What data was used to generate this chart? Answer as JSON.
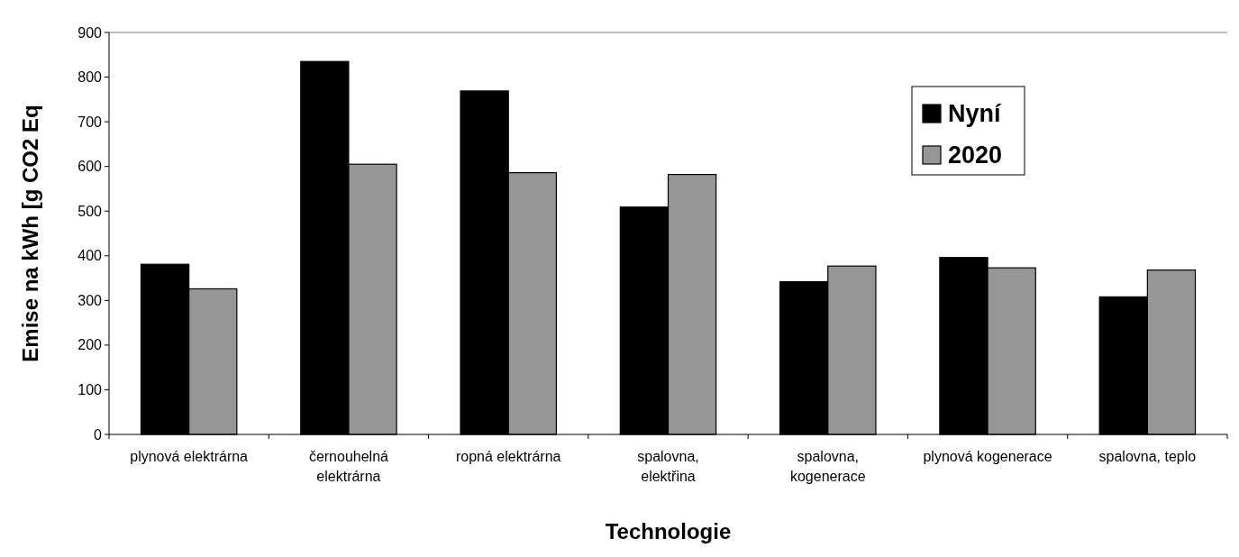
{
  "chart_data": {
    "type": "bar",
    "xlabel": "Technologie",
    "ylabel": "Emise na kWh [g CO2 Eq",
    "categories": [
      "plynová elektrárna",
      "černouhelná elektrárna",
      "ropná elektrárna",
      "spalovna, elektřina",
      "spalovna, kogenerace",
      "plynová kogenerace",
      "spalovna, teplo"
    ],
    "series": [
      {
        "name": "Nyní",
        "color": "#000000",
        "values": [
          381,
          835,
          769,
          509,
          342,
          396,
          308
        ]
      },
      {
        "name": "2020",
        "color": "#969696",
        "values": [
          326,
          605,
          586,
          582,
          377,
          373,
          368
        ]
      }
    ],
    "ylim": [
      0,
      900
    ],
    "yticks": [
      0,
      100,
      200,
      300,
      400,
      500,
      600,
      700,
      800,
      900
    ],
    "grid": false,
    "legend": "top right"
  }
}
